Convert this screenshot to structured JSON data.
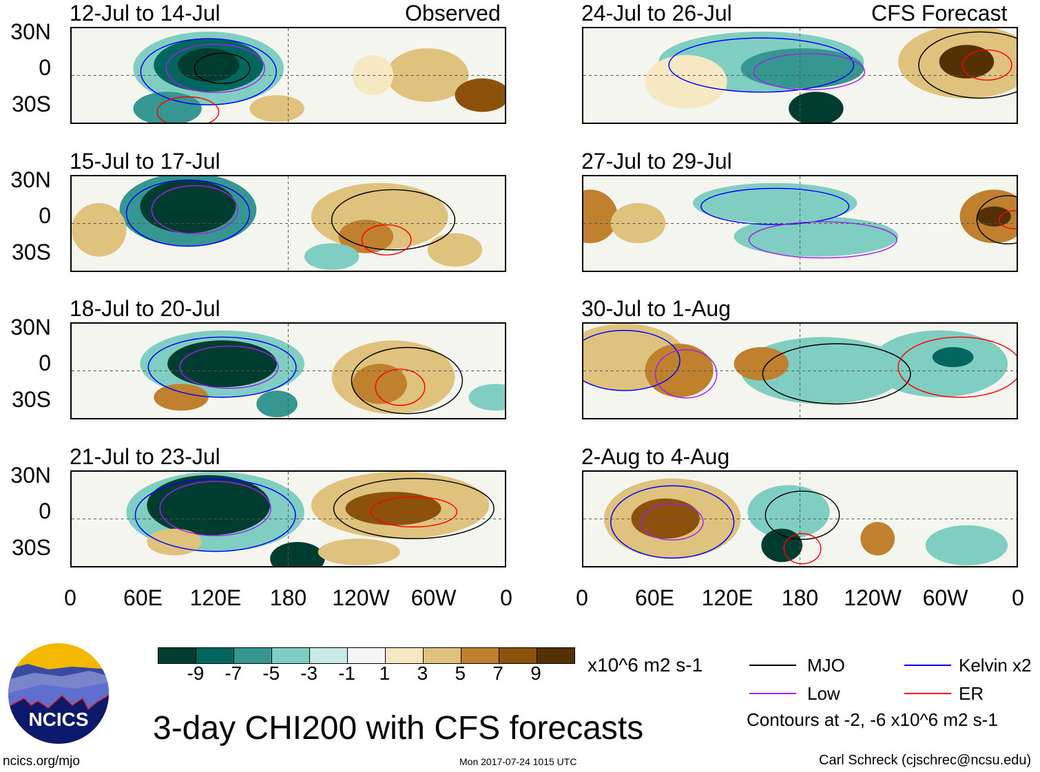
{
  "chart_data": {
    "type": "heatmap",
    "title": "3-day CHI200 with CFS forecasts",
    "variable": "CHI200 anomaly",
    "units": "x10^6 m2 s-1",
    "columns": [
      {
        "label": "Observed",
        "panels": [
          "12-Jul to 14-Jul",
          "15-Jul to 17-Jul",
          "18-Jul to 20-Jul",
          "21-Jul to 23-Jul"
        ]
      },
      {
        "label": "CFS Forecast",
        "panels": [
          "24-Jul to 26-Jul",
          "27-Jul to 29-Jul",
          "30-Jul to 1-Aug",
          "2-Aug to 4-Aug"
        ]
      }
    ],
    "y_ticks": [
      "30N",
      "0",
      "30S"
    ],
    "x_ticks": [
      "0",
      "60E",
      "120E",
      "180",
      "120W",
      "60W",
      "0"
    ],
    "colorbar": {
      "tick_labels": [
        "-9",
        "-7",
        "-5",
        "-3",
        "-1",
        "1",
        "3",
        "5",
        "7",
        "9"
      ],
      "colors": [
        "#003c30",
        "#01665e",
        "#35978f",
        "#80cdc1",
        "#c7eae5",
        "#f5f5f5",
        "#f6e8c3",
        "#dfc27d",
        "#bf812d",
        "#8c510a",
        "#543005"
      ]
    },
    "legend": [
      {
        "label": "MJO",
        "color": "#000000"
      },
      {
        "label": "Kelvin x2",
        "color": "#0000ff"
      },
      {
        "label": "Low",
        "color": "#a020f0"
      },
      {
        "label": "ER",
        "color": "#ff0000"
      }
    ],
    "contour_note": "Contours at -2, -6 x10^6 m2 s-1"
  },
  "footer": {
    "logo_text": "NCICS",
    "url": "ncics.org/mjo",
    "timestamp": "Mon 2017-07-24 1015 UTC",
    "credit": "Carl Schreck (cjschrec@ncsu.edu)"
  }
}
